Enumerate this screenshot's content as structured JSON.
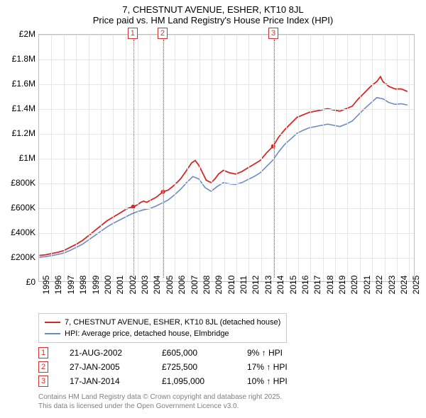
{
  "title": {
    "line1": "7, CHESTNUT AVENUE, ESHER, KT10 8JL",
    "line2": "Price paid vs. HM Land Registry's House Price Index (HPI)"
  },
  "chart": {
    "type": "line",
    "background_color": "#ffffff",
    "grid_color": "#e6e6e6",
    "border_color": "#bfbfbf",
    "xlim": [
      1995,
      2025.5
    ],
    "ylim": [
      0,
      2000000
    ],
    "ytick_step": 200000,
    "ytick_labels": [
      "£0",
      "£200K",
      "£400K",
      "£600K",
      "£800K",
      "£1M",
      "£1.2M",
      "£1.4M",
      "£1.6M",
      "£1.8M",
      "£2M"
    ],
    "xtick_step": 1,
    "xtick_labels": [
      "1995",
      "1996",
      "1997",
      "1998",
      "1999",
      "2000",
      "2001",
      "2002",
      "2003",
      "2004",
      "2005",
      "2006",
      "2007",
      "2008",
      "2009",
      "2010",
      "2011",
      "2012",
      "2013",
      "2014",
      "2015",
      "2016",
      "2017",
      "2018",
      "2019",
      "2020",
      "2021",
      "2022",
      "2023",
      "2024",
      "2025"
    ],
    "axis_fontsize": 12,
    "title_fontsize": 13,
    "series": [
      {
        "name": "7, CHESTNUT AVENUE, ESHER, KT10 8JL (detached house)",
        "color": "#d62728",
        "line_width": 1.8,
        "data": [
          [
            1995.0,
            210000
          ],
          [
            1995.5,
            215000
          ],
          [
            1996.0,
            225000
          ],
          [
            1996.5,
            235000
          ],
          [
            1997.0,
            250000
          ],
          [
            1997.5,
            275000
          ],
          [
            1998.0,
            300000
          ],
          [
            1998.5,
            330000
          ],
          [
            1999.0,
            370000
          ],
          [
            1999.5,
            410000
          ],
          [
            2000.0,
            450000
          ],
          [
            2000.5,
            490000
          ],
          [
            2001.0,
            520000
          ],
          [
            2001.5,
            550000
          ],
          [
            2002.0,
            580000
          ],
          [
            2002.3,
            595000
          ],
          [
            2002.64,
            605000
          ],
          [
            2003.0,
            620000
          ],
          [
            2003.25,
            640000
          ],
          [
            2003.5,
            650000
          ],
          [
            2003.75,
            640000
          ],
          [
            2004.0,
            655000
          ],
          [
            2004.5,
            680000
          ],
          [
            2005.07,
            725500
          ],
          [
            2005.5,
            740000
          ],
          [
            2006.0,
            780000
          ],
          [
            2006.5,
            830000
          ],
          [
            2007.0,
            900000
          ],
          [
            2007.4,
            960000
          ],
          [
            2007.7,
            980000
          ],
          [
            2008.0,
            940000
          ],
          [
            2008.3,
            880000
          ],
          [
            2008.6,
            820000
          ],
          [
            2009.0,
            800000
          ],
          [
            2009.3,
            830000
          ],
          [
            2009.6,
            870000
          ],
          [
            2010.0,
            900000
          ],
          [
            2010.5,
            880000
          ],
          [
            2011.0,
            870000
          ],
          [
            2011.5,
            890000
          ],
          [
            2012.0,
            920000
          ],
          [
            2012.5,
            950000
          ],
          [
            2013.0,
            980000
          ],
          [
            2013.5,
            1040000
          ],
          [
            2014.05,
            1095000
          ],
          [
            2014.5,
            1170000
          ],
          [
            2015.0,
            1230000
          ],
          [
            2015.5,
            1280000
          ],
          [
            2016.0,
            1330000
          ],
          [
            2016.5,
            1350000
          ],
          [
            2017.0,
            1370000
          ],
          [
            2017.5,
            1380000
          ],
          [
            2018.0,
            1390000
          ],
          [
            2018.5,
            1400000
          ],
          [
            2019.0,
            1390000
          ],
          [
            2019.5,
            1380000
          ],
          [
            2020.0,
            1400000
          ],
          [
            2020.5,
            1420000
          ],
          [
            2021.0,
            1480000
          ],
          [
            2021.5,
            1530000
          ],
          [
            2022.0,
            1580000
          ],
          [
            2022.5,
            1620000
          ],
          [
            2022.8,
            1660000
          ],
          [
            2023.0,
            1620000
          ],
          [
            2023.5,
            1580000
          ],
          [
            2024.0,
            1560000
          ],
          [
            2024.5,
            1560000
          ],
          [
            2025.0,
            1540000
          ]
        ]
      },
      {
        "name": "HPI: Average price, detached house, Elmbridge",
        "color": "#6b8bc4",
        "line_width": 1.6,
        "data": [
          [
            1995.0,
            195000
          ],
          [
            1995.5,
            200000
          ],
          [
            1996.0,
            208000
          ],
          [
            1996.5,
            218000
          ],
          [
            1997.0,
            230000
          ],
          [
            1997.5,
            250000
          ],
          [
            1998.0,
            275000
          ],
          [
            1998.5,
            300000
          ],
          [
            1999.0,
            335000
          ],
          [
            1999.5,
            370000
          ],
          [
            2000.0,
            405000
          ],
          [
            2000.5,
            440000
          ],
          [
            2001.0,
            470000
          ],
          [
            2001.5,
            495000
          ],
          [
            2002.0,
            520000
          ],
          [
            2002.5,
            545000
          ],
          [
            2003.0,
            565000
          ],
          [
            2003.5,
            580000
          ],
          [
            2004.0,
            590000
          ],
          [
            2004.5,
            610000
          ],
          [
            2005.0,
            635000
          ],
          [
            2005.5,
            660000
          ],
          [
            2006.0,
            700000
          ],
          [
            2006.5,
            745000
          ],
          [
            2007.0,
            800000
          ],
          [
            2007.5,
            850000
          ],
          [
            2008.0,
            830000
          ],
          [
            2008.5,
            760000
          ],
          [
            2009.0,
            730000
          ],
          [
            2009.5,
            770000
          ],
          [
            2010.0,
            800000
          ],
          [
            2010.5,
            790000
          ],
          [
            2011.0,
            785000
          ],
          [
            2011.5,
            800000
          ],
          [
            2012.0,
            825000
          ],
          [
            2012.5,
            850000
          ],
          [
            2013.0,
            880000
          ],
          [
            2013.5,
            930000
          ],
          [
            2014.0,
            980000
          ],
          [
            2014.5,
            1050000
          ],
          [
            2015.0,
            1110000
          ],
          [
            2015.5,
            1155000
          ],
          [
            2016.0,
            1200000
          ],
          [
            2016.5,
            1225000
          ],
          [
            2017.0,
            1245000
          ],
          [
            2017.5,
            1255000
          ],
          [
            2018.0,
            1265000
          ],
          [
            2018.5,
            1275000
          ],
          [
            2019.0,
            1265000
          ],
          [
            2019.5,
            1255000
          ],
          [
            2020.0,
            1275000
          ],
          [
            2020.5,
            1300000
          ],
          [
            2021.0,
            1350000
          ],
          [
            2021.5,
            1400000
          ],
          [
            2022.0,
            1445000
          ],
          [
            2022.5,
            1490000
          ],
          [
            2023.0,
            1480000
          ],
          [
            2023.5,
            1450000
          ],
          [
            2024.0,
            1435000
          ],
          [
            2024.5,
            1440000
          ],
          [
            2025.0,
            1430000
          ]
        ]
      }
    ],
    "markers": [
      {
        "n": "1",
        "x": 2002.64,
        "y": 605000,
        "color": "#d03030"
      },
      {
        "n": "2",
        "x": 2005.07,
        "y": 725500,
        "color": "#d03030"
      },
      {
        "n": "3",
        "x": 2014.05,
        "y": 1095000,
        "color": "#d03030"
      }
    ],
    "marker_point_color": "#d62728",
    "marker_point_radius": 3
  },
  "legend": {
    "border_color": "#cccccc",
    "fontsize": 11,
    "items": [
      {
        "label": "7, CHESTNUT AVENUE, ESHER, KT10 8JL (detached house)",
        "color": "#d62728"
      },
      {
        "label": "HPI: Average price, detached house, Elmbridge",
        "color": "#6b8bc4"
      }
    ]
  },
  "events": {
    "fontsize": 12,
    "rows": [
      {
        "n": "1",
        "date": "21-AUG-2002",
        "price": "£605,000",
        "pct": "9% ↑ HPI"
      },
      {
        "n": "2",
        "date": "27-JAN-2005",
        "price": "£725,500",
        "pct": "17% ↑ HPI"
      },
      {
        "n": "3",
        "date": "17-JAN-2014",
        "price": "£1,095,000",
        "pct": "10% ↑ HPI"
      }
    ]
  },
  "footer": {
    "line1": "Contains HM Land Registry data © Crown copyright and database right 2025.",
    "line2": "This data is licensed under the Open Government Licence v3.0.",
    "color": "#808080",
    "fontsize": 10
  }
}
